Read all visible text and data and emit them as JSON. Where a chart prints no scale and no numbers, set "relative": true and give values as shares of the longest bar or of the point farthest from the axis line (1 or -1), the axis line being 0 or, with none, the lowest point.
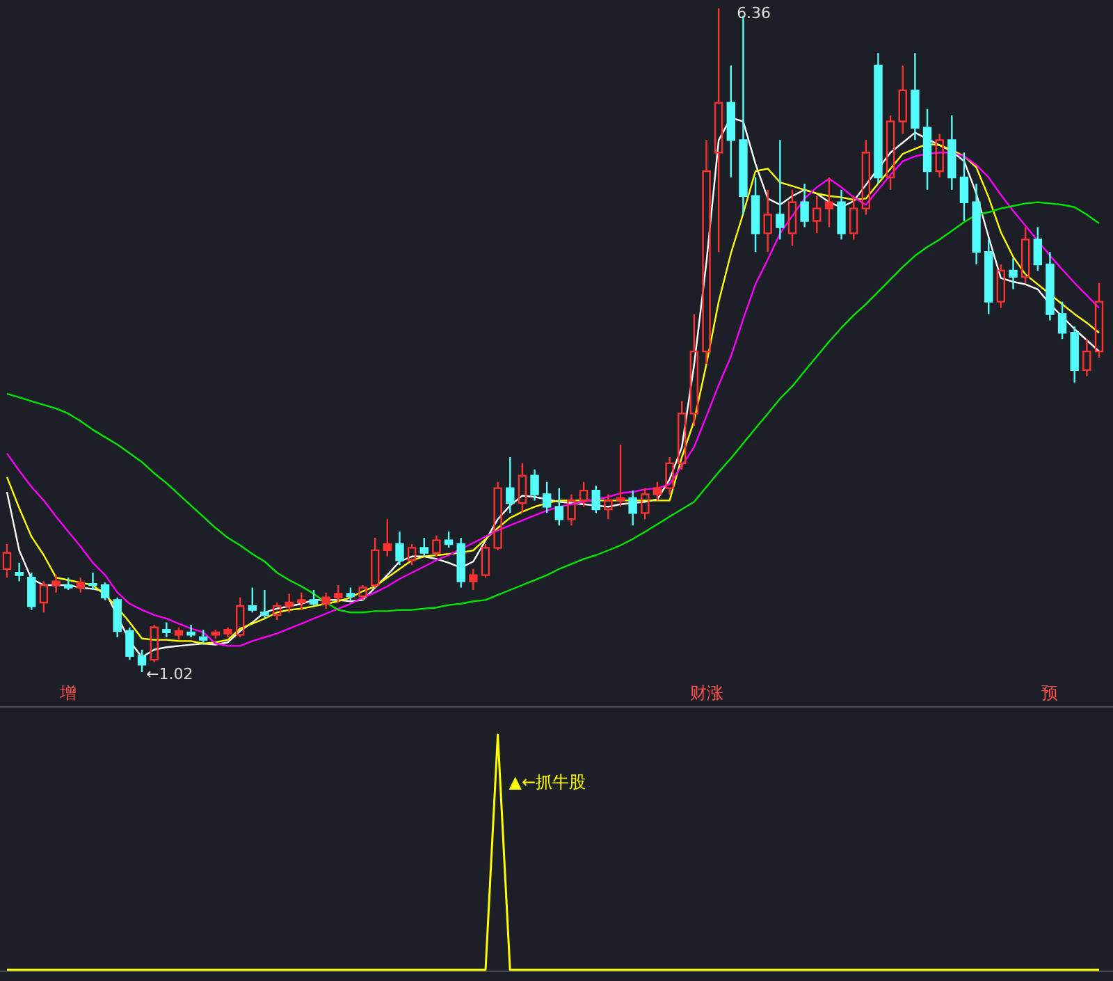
{
  "chart_data": [
    {
      "type": "candlestick",
      "categories": [
        null,
        null,
        null,
        null,
        null,
        "增",
        null,
        null,
        null,
        null,
        null,
        null,
        null,
        null,
        null,
        null,
        null,
        null,
        null,
        null,
        null,
        null,
        null,
        null,
        null,
        null,
        null,
        null,
        null,
        null,
        null,
        null,
        null,
        null,
        null,
        null,
        null,
        null,
        null,
        null,
        null,
        null,
        null,
        null,
        null,
        null,
        null,
        null,
        null,
        null,
        null,
        null,
        null,
        null,
        null,
        null,
        null,
        "财涨",
        null,
        null,
        null,
        null,
        null,
        null,
        null,
        null,
        null,
        null,
        null,
        null,
        null,
        null,
        null,
        null,
        null,
        null,
        null,
        null,
        null,
        null,
        null,
        null,
        null,
        null,
        null,
        "预",
        null,
        null,
        null,
        null
      ],
      "colors": [
        "#ff3232",
        "#54fcfc",
        "#54fcfc",
        "#ff3232",
        "#ff3232",
        "#54fcfc",
        "#ff3232",
        "#54fcfc",
        "#54fcfc",
        "#54fcfc",
        "#54fcfc",
        "#54fcfc",
        "#ff3232",
        "#54fcfc",
        "#ff3232",
        "#54fcfc",
        "#54fcfc",
        "#ff3232",
        "#ff3232",
        "#ff3232",
        "#54fcfc",
        "#54fcfc",
        "#ff3232",
        "#ff3232",
        "#ff3232",
        "#54fcfc",
        "#ff3232",
        "#ff3232",
        "#54fcfc",
        "#ff3232",
        "#ff3232",
        "#ff3232",
        "#54fcfc",
        "#ff3232",
        "#54fcfc",
        "#ff3232",
        "#54fcfc",
        "#54fcfc",
        "#ff3232",
        "#ff3232",
        "#ff3232",
        "#54fcfc",
        "#ff3232",
        "#54fcfc",
        "#54fcfc",
        "#54fcfc",
        "#ff3232",
        "#ff3232",
        "#54fcfc",
        "#ff3232",
        "#ff3232",
        "#54fcfc",
        "#ff3232",
        "#ff3232",
        "#ff3232",
        "#ff3232",
        "#ff3232",
        "#ff3232",
        "#ff3232",
        "#54fcfc",
        "#54fcfc",
        "#54fcfc",
        "#ff3232",
        "#54fcfc",
        "#ff3232",
        "#54fcfc",
        "#ff3232",
        "#ff3232",
        "#54fcfc",
        "#ff3232",
        "#ff3232",
        "#54fcfc",
        "#ff3232",
        "#ff3232",
        "#54fcfc",
        "#54fcfc",
        "#ff3232",
        "#54fcfc",
        "#54fcfc",
        "#54fcfc",
        "#54fcfc",
        "#ff3232",
        "#54fcfc",
        "#ff3232",
        "#54fcfc",
        "#54fcfc",
        "#54fcfc",
        "#54fcfc",
        "#ff3232",
        "#ff3232"
      ],
      "ohlc": [
        [
          1.85,
          2.05,
          1.78,
          1.98
        ],
        [
          1.82,
          1.9,
          1.75,
          1.8
        ],
        [
          1.78,
          1.82,
          1.52,
          1.55
        ],
        [
          1.58,
          1.75,
          1.5,
          1.72
        ],
        [
          1.72,
          1.8,
          1.66,
          1.75
        ],
        [
          1.72,
          1.78,
          1.68,
          1.7
        ],
        [
          1.7,
          1.78,
          1.66,
          1.74
        ],
        [
          1.73,
          1.82,
          1.68,
          1.72
        ],
        [
          1.72,
          1.74,
          1.6,
          1.62
        ],
        [
          1.6,
          1.62,
          1.3,
          1.35
        ],
        [
          1.35,
          1.38,
          1.12,
          1.15
        ],
        [
          1.15,
          1.2,
          1.02,
          1.08
        ],
        [
          1.12,
          1.4,
          1.1,
          1.38
        ],
        [
          1.36,
          1.42,
          1.3,
          1.34
        ],
        [
          1.32,
          1.38,
          1.28,
          1.35
        ],
        [
          1.34,
          1.4,
          1.3,
          1.32
        ],
        [
          1.3,
          1.36,
          1.25,
          1.28
        ],
        [
          1.32,
          1.36,
          1.29,
          1.34
        ],
        [
          1.33,
          1.38,
          1.3,
          1.36
        ],
        [
          1.32,
          1.62,
          1.3,
          1.55
        ],
        [
          1.55,
          1.7,
          1.5,
          1.52
        ],
        [
          1.5,
          1.68,
          1.45,
          1.48
        ],
        [
          1.48,
          1.58,
          1.44,
          1.55
        ],
        [
          1.55,
          1.65,
          1.5,
          1.58
        ],
        [
          1.58,
          1.66,
          1.52,
          1.6
        ],
        [
          1.6,
          1.68,
          1.55,
          1.57
        ],
        [
          1.57,
          1.66,
          1.53,
          1.62
        ],
        [
          1.62,
          1.72,
          1.58,
          1.65
        ],
        [
          1.65,
          1.7,
          1.6,
          1.63
        ],
        [
          1.63,
          1.72,
          1.6,
          1.7
        ],
        [
          1.72,
          2.1,
          1.7,
          2.0
        ],
        [
          2.0,
          2.25,
          1.95,
          2.05
        ],
        [
          2.05,
          2.15,
          1.88,
          1.92
        ],
        [
          1.92,
          2.05,
          1.88,
          2.02
        ],
        [
          2.02,
          2.1,
          1.95,
          1.98
        ],
        [
          1.98,
          2.12,
          1.95,
          2.08
        ],
        [
          2.08,
          2.15,
          2.02,
          2.05
        ],
        [
          2.05,
          2.1,
          1.7,
          1.75
        ],
        [
          1.75,
          1.85,
          1.68,
          1.8
        ],
        [
          1.8,
          2.05,
          1.78,
          2.02
        ],
        [
          2.02,
          2.55,
          2.0,
          2.5
        ],
        [
          2.5,
          2.75,
          2.3,
          2.38
        ],
        [
          2.38,
          2.7,
          2.3,
          2.6
        ],
        [
          2.6,
          2.65,
          2.4,
          2.45
        ],
        [
          2.45,
          2.55,
          2.3,
          2.35
        ],
        [
          2.35,
          2.5,
          2.2,
          2.25
        ],
        [
          2.25,
          2.45,
          2.2,
          2.4
        ],
        [
          2.4,
          2.55,
          2.35,
          2.48
        ],
        [
          2.48,
          2.52,
          2.3,
          2.33
        ],
        [
          2.33,
          2.45,
          2.25,
          2.4
        ],
        [
          2.4,
          2.85,
          2.35,
          2.42
        ],
        [
          2.42,
          2.48,
          2.2,
          2.3
        ],
        [
          2.3,
          2.5,
          2.25,
          2.45
        ],
        [
          2.45,
          2.55,
          2.4,
          2.5
        ],
        [
          2.5,
          2.75,
          2.45,
          2.7
        ],
        [
          2.7,
          3.2,
          2.65,
          3.1
        ],
        [
          3.1,
          3.9,
          3.0,
          3.6
        ],
        [
          3.6,
          5.3,
          3.5,
          5.05
        ],
        [
          5.2,
          6.36,
          4.4,
          5.6
        ],
        [
          5.6,
          5.9,
          5.0,
          5.3
        ],
        [
          5.3,
          6.3,
          4.7,
          4.85
        ],
        [
          4.85,
          5.0,
          4.4,
          4.55
        ],
        [
          4.55,
          4.9,
          4.4,
          4.7
        ],
        [
          4.7,
          5.3,
          4.5,
          4.6
        ],
        [
          4.55,
          4.9,
          4.45,
          4.8
        ],
        [
          4.8,
          4.95,
          4.6,
          4.65
        ],
        [
          4.65,
          4.85,
          4.55,
          4.75
        ],
        [
          4.75,
          5.0,
          4.6,
          4.8
        ],
        [
          4.8,
          4.9,
          4.5,
          4.55
        ],
        [
          4.55,
          4.85,
          4.5,
          4.75
        ],
        [
          4.75,
          5.3,
          4.7,
          5.2
        ],
        [
          5.9,
          6.0,
          4.95,
          5.0
        ],
        [
          5.0,
          5.5,
          4.9,
          5.45
        ],
        [
          5.45,
          5.9,
          5.35,
          5.7
        ],
        [
          5.7,
          6.0,
          5.3,
          5.4
        ],
        [
          5.4,
          5.55,
          4.9,
          5.05
        ],
        [
          5.05,
          5.35,
          5.0,
          5.3
        ],
        [
          5.3,
          5.5,
          4.9,
          5.0
        ],
        [
          5.0,
          5.2,
          4.65,
          4.8
        ],
        [
          4.8,
          4.95,
          4.3,
          4.4
        ],
        [
          4.4,
          4.5,
          3.9,
          4.0
        ],
        [
          4.0,
          4.3,
          3.95,
          4.25
        ],
        [
          4.25,
          4.35,
          4.1,
          4.2
        ],
        [
          4.2,
          4.6,
          4.15,
          4.5
        ],
        [
          4.5,
          4.6,
          4.25,
          4.3
        ],
        [
          4.3,
          4.4,
          3.85,
          3.9
        ],
        [
          3.9,
          4.0,
          3.7,
          3.75
        ],
        [
          3.75,
          3.8,
          3.35,
          3.45
        ],
        [
          3.45,
          3.7,
          3.4,
          3.6
        ],
        [
          3.6,
          4.15,
          3.55,
          4.0
        ]
      ],
      "series": [
        {
          "type": "line",
          "color": "#ffffff",
          "values": [
            2.47,
            2.0,
            1.77,
            1.72,
            1.72,
            1.72,
            1.7,
            1.69,
            1.67,
            1.47,
            1.27,
            1.14,
            1.2,
            1.22,
            1.23,
            1.24,
            1.25,
            1.24,
            1.26,
            1.35,
            1.42,
            1.5,
            1.53,
            1.55,
            1.57,
            1.6,
            1.6,
            1.6,
            1.59,
            1.6,
            1.7,
            1.8,
            1.91,
            1.95,
            1.95,
            1.93,
            1.9,
            1.86,
            1.91,
            2.08,
            2.25,
            2.36,
            2.44,
            2.43,
            2.41,
            2.39,
            2.38,
            2.37,
            2.36,
            2.35,
            2.37,
            2.38,
            2.39,
            2.41,
            2.57,
            2.83,
            3.49,
            4.32,
            5.3,
            5.48,
            5.45,
            5.11,
            4.83,
            4.78,
            4.85,
            4.9,
            4.87,
            4.8,
            4.76,
            4.81,
            4.94,
            5.07,
            5.2,
            5.28,
            5.36,
            5.31,
            5.26,
            5.21,
            5.13,
            4.87,
            4.52,
            4.19,
            4.16,
            4.14,
            4.1,
            3.98,
            3.88,
            3.78,
            3.69,
            3.6
          ]
        },
        {
          "type": "line",
          "color": "#ffff00",
          "values": [
            2.59,
            2.34,
            2.11,
            1.96,
            1.78,
            1.76,
            1.74,
            1.72,
            1.64,
            1.54,
            1.42,
            1.29,
            1.28,
            1.28,
            1.27,
            1.27,
            1.25,
            1.26,
            1.28,
            1.37,
            1.41,
            1.45,
            1.5,
            1.52,
            1.53,
            1.55,
            1.57,
            1.59,
            1.62,
            1.67,
            1.71,
            1.78,
            1.85,
            1.92,
            1.95,
            1.96,
            1.97,
            1.98,
            2.0,
            2.09,
            2.18,
            2.26,
            2.31,
            2.35,
            2.38,
            2.4,
            2.4,
            2.4,
            2.4,
            2.4,
            2.4,
            2.4,
            2.4,
            2.4,
            2.4,
            2.75,
            3.04,
            3.5,
            4.0,
            4.39,
            4.71,
            5.05,
            5.07,
            4.96,
            4.93,
            4.9,
            4.87,
            4.85,
            4.84,
            4.82,
            4.83,
            4.95,
            5.07,
            5.19,
            5.23,
            5.27,
            5.26,
            5.22,
            5.17,
            5.08,
            4.84,
            4.56,
            4.36,
            4.22,
            4.14,
            4.06,
            3.98,
            3.9,
            3.83,
            3.75
          ]
        },
        {
          "type": "line",
          "color": "#ff00ff",
          "values": [
            2.78,
            2.64,
            2.51,
            2.4,
            2.27,
            2.15,
            2.03,
            1.9,
            1.8,
            1.66,
            1.57,
            1.52,
            1.48,
            1.45,
            1.41,
            1.37,
            1.34,
            1.25,
            1.23,
            1.23,
            1.27,
            1.3,
            1.33,
            1.37,
            1.41,
            1.45,
            1.49,
            1.53,
            1.57,
            1.62,
            1.66,
            1.71,
            1.77,
            1.82,
            1.87,
            1.92,
            1.96,
            2.01,
            2.06,
            2.11,
            2.16,
            2.2,
            2.24,
            2.28,
            2.32,
            2.35,
            2.37,
            2.39,
            2.41,
            2.43,
            2.46,
            2.47,
            2.49,
            2.5,
            2.53,
            2.68,
            2.83,
            3.08,
            3.33,
            3.56,
            3.86,
            4.14,
            4.34,
            4.55,
            4.69,
            4.83,
            4.92,
            4.99,
            4.92,
            4.84,
            4.78,
            4.9,
            5.02,
            5.13,
            5.17,
            5.19,
            5.2,
            5.2,
            5.17,
            5.1,
            5.0,
            4.86,
            4.73,
            4.61,
            4.49,
            4.37,
            4.26,
            4.15,
            4.05,
            3.95
          ]
        },
        {
          "type": "line",
          "color": "#00e600",
          "values": [
            3.26,
            3.23,
            3.2,
            3.17,
            3.14,
            3.1,
            3.04,
            2.97,
            2.91,
            2.85,
            2.78,
            2.71,
            2.62,
            2.54,
            2.45,
            2.36,
            2.27,
            2.18,
            2.1,
            2.04,
            1.97,
            1.91,
            1.82,
            1.76,
            1.71,
            1.65,
            1.58,
            1.52,
            1.5,
            1.5,
            1.51,
            1.51,
            1.52,
            1.52,
            1.53,
            1.54,
            1.56,
            1.57,
            1.59,
            1.6,
            1.64,
            1.68,
            1.72,
            1.76,
            1.8,
            1.85,
            1.89,
            1.93,
            1.96,
            2.0,
            2.04,
            2.09,
            2.15,
            2.21,
            2.27,
            2.33,
            2.39,
            2.51,
            2.63,
            2.74,
            2.86,
            2.98,
            3.1,
            3.22,
            3.32,
            3.44,
            3.56,
            3.68,
            3.79,
            3.89,
            3.98,
            4.08,
            4.18,
            4.28,
            4.37,
            4.44,
            4.5,
            4.57,
            4.64,
            4.7,
            4.72,
            4.75,
            4.77,
            4.79,
            4.8,
            4.79,
            4.78,
            4.76,
            4.7,
            4.63
          ]
        }
      ],
      "annotations": [
        "6.36",
        "←1.02"
      ]
    },
    {
      "type": "line",
      "relative": true,
      "categories": [
        null,
        null,
        null,
        null,
        null,
        null,
        null,
        null,
        null,
        null,
        null,
        null,
        null,
        null,
        null,
        null,
        null,
        null,
        null,
        null,
        null,
        null,
        null,
        null,
        null,
        null,
        null,
        null,
        null,
        null,
        null,
        null,
        null,
        null,
        null,
        null,
        null,
        null,
        null,
        null,
        null,
        null,
        null,
        null,
        null,
        null,
        null,
        null,
        null,
        null,
        null,
        null,
        null,
        null,
        null,
        null,
        null,
        null,
        null,
        null,
        null,
        null,
        null,
        null,
        null,
        null,
        null,
        null,
        null,
        null,
        null,
        null,
        null,
        null,
        null,
        null,
        null,
        null,
        null,
        null,
        null,
        null,
        null,
        null,
        null,
        null,
        null,
        null,
        null,
        null
      ],
      "series": [
        {
          "color": "#ffff00",
          "values": [
            0,
            0,
            0,
            0,
            0,
            0,
            0,
            0,
            0,
            0,
            0,
            0,
            0,
            0,
            0,
            0,
            0,
            0,
            0,
            0,
            0,
            0,
            0,
            0,
            0,
            0,
            0,
            0,
            0,
            0,
            0,
            0,
            0,
            0,
            0,
            0,
            0,
            0,
            0,
            0,
            1,
            0,
            0,
            0,
            0,
            0,
            0,
            0,
            0,
            0,
            0,
            0,
            0,
            0,
            0,
            0,
            0,
            0,
            0,
            0,
            0,
            0,
            0,
            0,
            0,
            0,
            0,
            0,
            0,
            0,
            0,
            0,
            0,
            0,
            0,
            0,
            0,
            0,
            0,
            0,
            0,
            0,
            0,
            0,
            0,
            0,
            0,
            0,
            0,
            0
          ]
        }
      ],
      "annotations": [
        "▲←抓牛股"
      ]
    }
  ]
}
